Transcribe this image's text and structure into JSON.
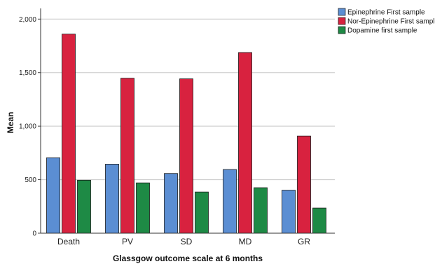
{
  "chart_data": {
    "type": "bar",
    "xlabel": "Glassgow outcome scale at 6 months",
    "ylabel": "Mean",
    "categories": [
      "Death",
      "PV",
      "SD",
      "MD",
      "GR"
    ],
    "ylim": [
      0,
      2100
    ],
    "yticks": [
      0,
      500,
      1000,
      1500,
      2000
    ],
    "ytick_labels": [
      "0",
      "500",
      "1,000",
      "1,500",
      "2,000"
    ],
    "grid": "horizontal",
    "legend_position": "top-right",
    "series": [
      {
        "name": "Epinephrine First sample",
        "color": "#5b8ed3",
        "values": [
          705,
          645,
          558,
          595,
          402
        ]
      },
      {
        "name": "Nor-Epinephrine First sample",
        "color": "#d8223f",
        "values": [
          1860,
          1448,
          1442,
          1688,
          908
        ]
      },
      {
        "name": "Dopamine first sample",
        "color": "#1e8a45",
        "values": [
          495,
          470,
          385,
          425,
          235
        ]
      }
    ]
  }
}
